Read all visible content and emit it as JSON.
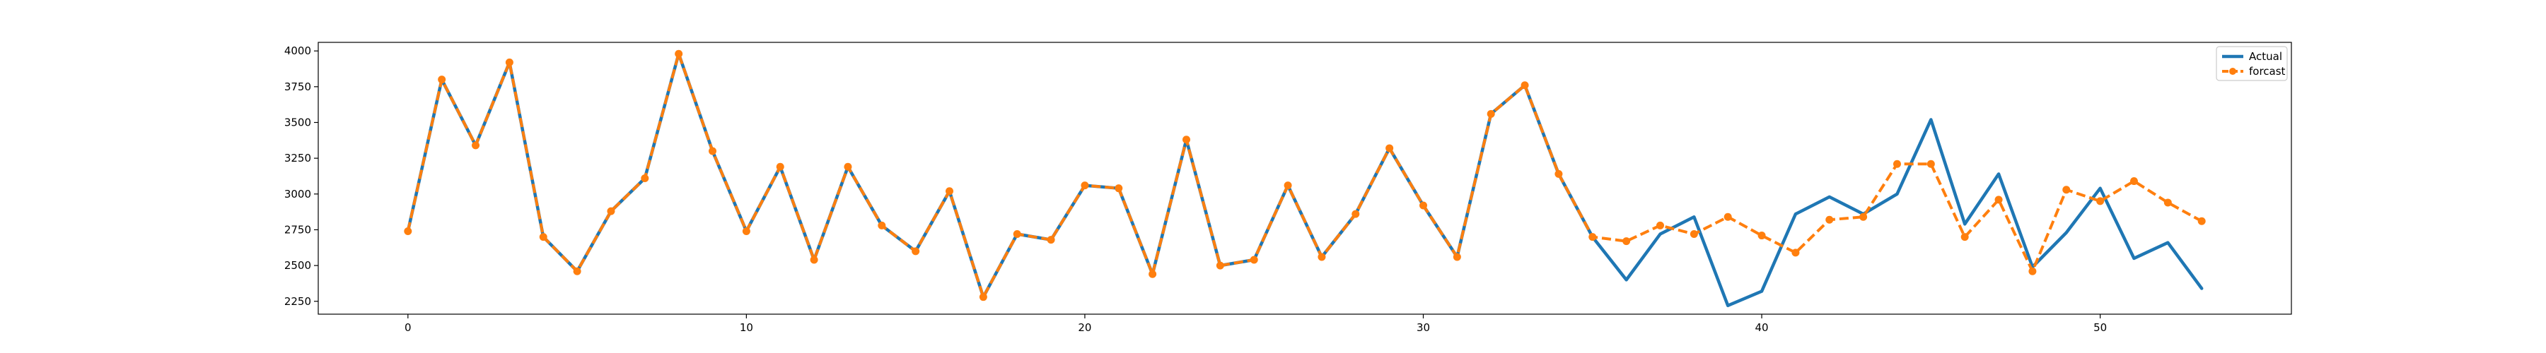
{
  "chart_data": {
    "type": "line",
    "title": "",
    "xlabel": "",
    "ylabel": "",
    "xlim": [
      -2.65,
      55.65
    ],
    "ylim": [
      2160,
      4060
    ],
    "x_ticks": [
      0,
      10,
      20,
      30,
      40,
      50
    ],
    "y_ticks": [
      2250,
      2500,
      2750,
      3000,
      3250,
      3500,
      3750,
      4000
    ],
    "grid": false,
    "legend_position": "top-right",
    "series": [
      {
        "name": "Actual",
        "color": "#1f77b4",
        "style": "solid",
        "marker": "none",
        "x": [
          0,
          1,
          2,
          3,
          4,
          5,
          6,
          7,
          8,
          9,
          10,
          11,
          12,
          13,
          14,
          15,
          16,
          17,
          18,
          19,
          20,
          21,
          22,
          23,
          24,
          25,
          26,
          27,
          28,
          29,
          30,
          31,
          32,
          33,
          34,
          35,
          36,
          37,
          38,
          39,
          40,
          41,
          42,
          43,
          44,
          45,
          46,
          47,
          48,
          49,
          50,
          51,
          52,
          53
        ],
        "values": [
          2740,
          3800,
          3340,
          3920,
          2700,
          2460,
          2880,
          3110,
          3980,
          3300,
          2740,
          3190,
          2540,
          3190,
          2780,
          2600,
          3020,
          2280,
          2720,
          2680,
          3060,
          3040,
          2440,
          3380,
          2500,
          2540,
          3060,
          2560,
          2860,
          3320,
          2920,
          2560,
          3560,
          3760,
          3140,
          2700,
          2400,
          2720,
          2840,
          2220,
          2320,
          2860,
          2980,
          2860,
          3000,
          3520,
          2790,
          3140,
          2490,
          2730,
          3040,
          2550,
          2660,
          2340
        ]
      },
      {
        "name": "forcast",
        "color": "#ff7f0e",
        "style": "dashed",
        "marker": "circle",
        "x": [
          0,
          1,
          2,
          3,
          4,
          5,
          6,
          7,
          8,
          9,
          10,
          11,
          12,
          13,
          14,
          15,
          16,
          17,
          18,
          19,
          20,
          21,
          22,
          23,
          24,
          25,
          26,
          27,
          28,
          29,
          30,
          31,
          32,
          33,
          34,
          35,
          36,
          37,
          38,
          39,
          40,
          41,
          42,
          43,
          44,
          45,
          46,
          47,
          48,
          49,
          50,
          51,
          52,
          53
        ],
        "values": [
          2740,
          3800,
          3340,
          3920,
          2700,
          2460,
          2880,
          3110,
          3980,
          3300,
          2740,
          3190,
          2540,
          3190,
          2780,
          2600,
          3020,
          2280,
          2720,
          2680,
          3060,
          3040,
          2440,
          3380,
          2500,
          2540,
          3060,
          2560,
          2860,
          3320,
          2920,
          2560,
          3560,
          3760,
          3140,
          2700,
          2670,
          2780,
          2720,
          2840,
          2710,
          2590,
          2820,
          2840,
          3210,
          3210,
          2700,
          2960,
          2460,
          3030,
          2950,
          3090,
          2940,
          2810
        ]
      }
    ]
  }
}
